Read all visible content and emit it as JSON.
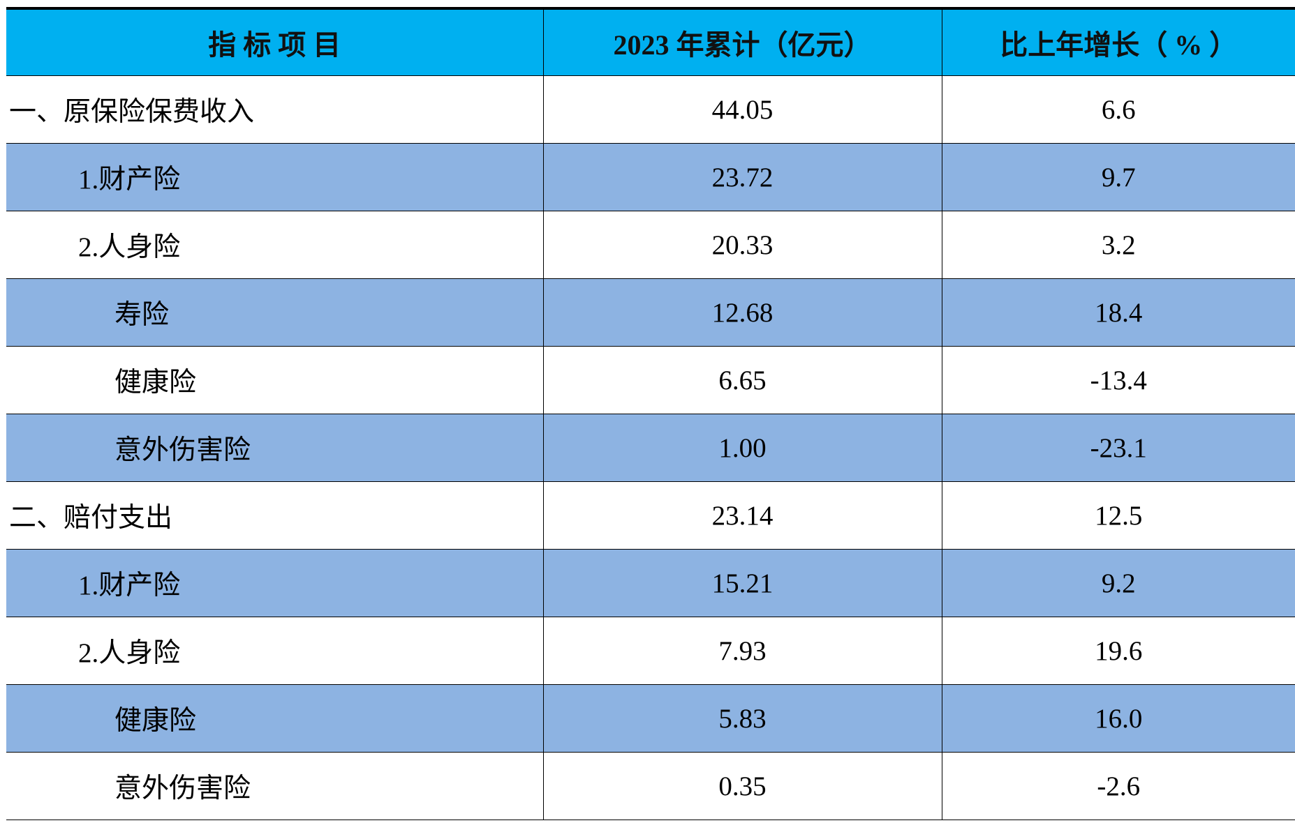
{
  "table": {
    "header": [
      "指 标 项 目",
      "2023 年累计（亿元）",
      "比上年增长（ % ）"
    ],
    "rows": [
      [
        "一、原保险保费收入",
        "44.05",
        "6.6"
      ],
      [
        "1.财产险",
        "23.72",
        "9.7"
      ],
      [
        "2.人身险",
        "20.33",
        "3.2"
      ],
      [
        "寿险",
        "12.68",
        "18.4"
      ],
      [
        "健康险",
        "6.65",
        "-13.4"
      ],
      [
        "意外伤害险",
        "1.00",
        "-23.1"
      ],
      [
        "二、赔付支出",
        "23.14",
        "12.5"
      ],
      [
        "1.财产险",
        "15.21",
        "9.2"
      ],
      [
        "2.人身险",
        "7.93",
        "19.6"
      ],
      [
        "健康险",
        "5.83",
        "16.0"
      ],
      [
        "意外伤害险",
        "0.35",
        "-2.6"
      ]
    ]
  }
}
